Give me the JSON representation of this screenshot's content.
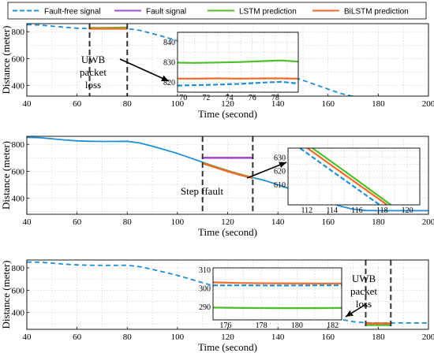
{
  "legend": {
    "items": [
      {
        "label": "Fault-free signal",
        "color": "#1f8fd6",
        "dash": true
      },
      {
        "label": "Fault signal",
        "color": "#a64dd6",
        "dash": false
      },
      {
        "label": "LSTM prediction",
        "color": "#4cbf2a",
        "dash": false
      },
      {
        "label": "BiLSTM prediction",
        "color": "#f06a2a",
        "dash": false
      }
    ]
  },
  "chart_data": [
    {
      "type": "line",
      "xlabel": "Time (second)",
      "ylabel": "Distance (meter)",
      "xlim": [
        40,
        200
      ],
      "ylim": [
        320,
        860
      ],
      "xticks": [
        40,
        60,
        80,
        100,
        120,
        140,
        160,
        180,
        200
      ],
      "yticks": [
        400,
        600,
        800
      ],
      "grid": true,
      "clean_signal_style": "dashed",
      "series": [
        {
          "name": "Fault-free signal",
          "color": "#1f8fd6",
          "x": [
            40,
            45,
            50,
            55,
            60,
            65,
            70,
            75,
            80,
            85,
            90,
            95,
            100,
            105,
            110,
            115,
            120,
            125,
            130,
            135,
            140,
            145,
            150,
            155,
            160,
            165,
            170,
            175,
            180,
            185,
            190,
            195,
            200
          ],
          "y": [
            852,
            850,
            842,
            833,
            826,
            823,
            822,
            822,
            823,
            810,
            786,
            760,
            732,
            700,
            667,
            635,
            605,
            578,
            553,
            530,
            500,
            468,
            438,
            405,
            372,
            340,
            318,
            309,
            307,
            307,
            307,
            307,
            307
          ]
        },
        {
          "name": "LSTM prediction",
          "color": "#4cbf2a",
          "x": [
            65,
            70,
            75,
            80
          ],
          "y": [
            828,
            828,
            829,
            830
          ]
        },
        {
          "name": "BiLSTM prediction",
          "color": "#f06a2a",
          "x": [
            65,
            70,
            75,
            80
          ],
          "y": [
            823,
            823,
            823,
            823
          ]
        }
      ],
      "markers": [
        {
          "x": 65
        },
        {
          "x": 80
        }
      ],
      "annotation": "UWB packet loss",
      "annotation_lines": [
        "UWB",
        "packet",
        "loss"
      ],
      "inset": {
        "xlim": [
          69.5,
          80
        ],
        "ylim": [
          815,
          845
        ],
        "xticks": [
          70,
          72,
          74,
          76,
          78
        ],
        "yticks": [
          820,
          830,
          840
        ],
        "series": [
          {
            "name": "Fault-free signal",
            "color": "#1f8fd6",
            "x": [
              69.5,
              71,
              73,
              75,
              77,
              78.5,
              80
            ],
            "y": [
              818.3,
              818.5,
              818.8,
              819.2,
              819.8,
              820.2,
              819.3
            ]
          },
          {
            "name": "LSTM prediction",
            "color": "#4cbf2a",
            "x": [
              69.5,
              71,
              73,
              75,
              77,
              78.5,
              80
            ],
            "y": [
              829.8,
              829.7,
              829.9,
              830.1,
              830.6,
              830.9,
              830.3
            ]
          },
          {
            "name": "BiLSTM prediction",
            "color": "#f06a2a",
            "x": [
              69.5,
              71,
              73,
              75,
              77,
              78.5,
              80
            ],
            "y": [
              821.8,
              821.8,
              821.9,
              821.8,
              821.9,
              821.9,
              821.8
            ]
          }
        ]
      }
    },
    {
      "type": "line",
      "xlabel": "Time (second)",
      "ylabel": "Distance (meter)",
      "xlim": [
        40,
        200
      ],
      "ylim": [
        280,
        860
      ],
      "xticks": [
        40,
        60,
        80,
        100,
        120,
        140,
        160,
        180,
        200
      ],
      "yticks": [
        400,
        600,
        800
      ],
      "grid": true,
      "clean_signal_style": "solid",
      "series": [
        {
          "name": "Fault-free signal",
          "color": "#1f8fd6",
          "x": [
            40,
            45,
            50,
            55,
            60,
            65,
            70,
            75,
            80,
            85,
            90,
            95,
            100,
            105,
            110,
            115,
            120,
            125,
            130,
            135,
            140,
            145,
            150,
            155,
            160,
            165,
            170,
            175,
            180,
            185,
            190,
            195,
            200
          ],
          "y": [
            852,
            850,
            842,
            833,
            826,
            823,
            822,
            822,
            823,
            810,
            786,
            760,
            732,
            700,
            667,
            635,
            605,
            578,
            553,
            530,
            500,
            468,
            438,
            405,
            372,
            340,
            318,
            309,
            307,
            307,
            307,
            307,
            307
          ]
        },
        {
          "name": "Fault signal",
          "color": "#a64dd6",
          "x": [
            110,
            130
          ],
          "y": [
            700,
            700
          ]
        },
        {
          "name": "LSTM prediction",
          "color": "#4cbf2a",
          "x": [
            110,
            115,
            120,
            125,
            130
          ],
          "y": [
            662,
            632,
            602,
            575,
            552
          ]
        },
        {
          "name": "BiLSTM prediction",
          "color": "#f06a2a",
          "x": [
            110,
            115,
            120,
            125,
            130
          ],
          "y": [
            660,
            630,
            600,
            573,
            550
          ]
        }
      ],
      "markers": [
        {
          "x": 110
        },
        {
          "x": 130
        }
      ],
      "annotation": "Step ffault",
      "annotation_lines": [
        "Step ffault"
      ],
      "inset": {
        "xlim": [
          110.5,
          121
        ],
        "ylim": [
          595,
          637
        ],
        "xticks": [
          112,
          114,
          116,
          118,
          120
        ],
        "yticks": [
          610,
          620,
          630
        ],
        "series": [
          {
            "name": "Fault-free signal",
            "color": "#1f8fd6",
            "x": [
              111,
              114,
              117.8
            ],
            "y": [
              640,
              620,
              595
            ]
          },
          {
            "name": "LSTM prediction",
            "color": "#4cbf2a",
            "x": [
              112,
              115,
              118.7
            ],
            "y": [
              640,
              620,
              595
            ]
          },
          {
            "name": "BiLSTM prediction",
            "color": "#f06a2a",
            "x": [
              111.6,
              114.6,
              118.4
            ],
            "y": [
              640,
              620,
              595
            ]
          }
        ]
      }
    },
    {
      "type": "line",
      "xlabel": "Time (second)",
      "ylabel": "Distance (meter)",
      "xlim": [
        40,
        200
      ],
      "ylim": [
        250,
        870
      ],
      "xticks": [
        40,
        60,
        80,
        100,
        120,
        140,
        160,
        180,
        200
      ],
      "yticks": [
        400,
        600,
        800
      ],
      "grid": true,
      "clean_signal_style": "dashed",
      "series": [
        {
          "name": "Fault-free signal",
          "color": "#1f8fd6",
          "x": [
            40,
            45,
            50,
            55,
            60,
            65,
            70,
            75,
            80,
            85,
            90,
            95,
            100,
            105,
            110,
            115,
            120,
            125,
            130,
            135,
            140,
            145,
            150,
            155,
            160,
            165,
            170,
            175,
            180,
            185,
            190,
            195,
            200
          ],
          "y": [
            852,
            850,
            842,
            833,
            826,
            823,
            822,
            822,
            823,
            810,
            786,
            760,
            732,
            700,
            667,
            635,
            605,
            578,
            553,
            530,
            500,
            468,
            438,
            405,
            372,
            340,
            318,
            309,
            307,
            307,
            307,
            307,
            307
          ]
        },
        {
          "name": "LSTM prediction",
          "color": "#4cbf2a",
          "x": [
            175,
            180,
            185
          ],
          "y": [
            289,
            289,
            289
          ]
        },
        {
          "name": "BiLSTM prediction",
          "color": "#f06a2a",
          "x": [
            175,
            180,
            185
          ],
          "y": [
            302,
            302,
            302
          ]
        }
      ],
      "markers": [
        {
          "x": 175
        },
        {
          "x": 185
        }
      ],
      "annotation": "UWB packet loss",
      "annotation_lines": [
        "UWB",
        "packet",
        "loss"
      ],
      "inset": {
        "xlim": [
          175.3,
          182.5
        ],
        "ylim": [
          283,
          311
        ],
        "xticks": [
          176,
          178,
          180,
          182
        ],
        "yticks": [
          290,
          300,
          310
        ],
        "series": [
          {
            "name": "Fault-free signal",
            "color": "#1f8fd6",
            "x": [
              175.3,
              177,
              179,
              181,
              182.5
            ],
            "y": [
              301.6,
              301.6,
              301.5,
              301.6,
              301.6
            ]
          },
          {
            "name": "LSTM prediction",
            "color": "#4cbf2a",
            "x": [
              175.3,
              177,
              179,
              181,
              182.5
            ],
            "y": [
              289.6,
              289.4,
              289.3,
              289.3,
              289.4
            ]
          },
          {
            "name": "BiLSTM prediction",
            "color": "#f06a2a",
            "x": [
              175.3,
              177,
              179,
              181,
              182.5
            ],
            "y": [
              303.2,
              302.8,
              302.7,
              302.6,
              302.6
            ]
          }
        ]
      }
    }
  ]
}
